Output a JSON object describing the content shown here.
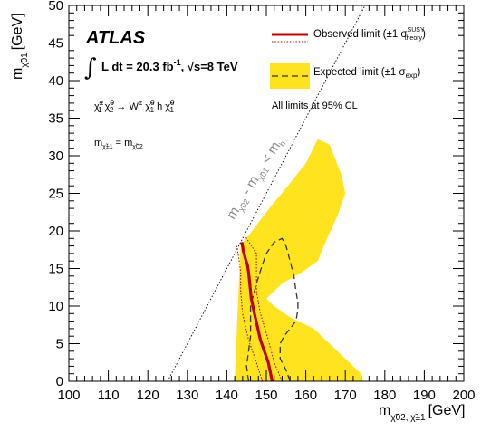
{
  "chart_data": {
    "type": "line",
    "experiment": "ATLAS",
    "luminosity_text": "L dt = 20.3 fb",
    "luminosity_sup": "-1",
    "energy_text": "s=8 TeV",
    "process": "χ̃±1 χ̃02 → W± χ̃01 h χ̃01",
    "mass_assumption": "mχ̃±1 = mχ̃02",
    "kinematic_label": "m - m < m",
    "cl_note": "All limits at 95% CL",
    "xlabel": "m",
    "xlabel_sub": "χ̃02, χ̃±1",
    "xlabel_unit": "[GeV]",
    "ylabel": "m",
    "ylabel_sub": "χ̃01",
    "ylabel_unit": "[GeV]",
    "xlim": [
      100,
      200
    ],
    "ylim": [
      0,
      50
    ],
    "x_ticks": [
      100,
      110,
      120,
      130,
      140,
      150,
      160,
      170,
      180,
      190,
      200
    ],
    "y_ticks": [
      0,
      5,
      10,
      15,
      20,
      25,
      30,
      35,
      40,
      45,
      50
    ],
    "legend": [
      {
        "label": "Observed limit (±1 σ",
        "sup": "SUSY",
        "sub": "theory",
        "close": ")",
        "style": "red-solid"
      },
      {
        "label": "Expected limit (±1 σ",
        "sub": "exp",
        "close": ")",
        "style": "black-dashed-yellow-band"
      }
    ],
    "series": [
      {
        "name": "Expected ±1σ band",
        "x": [
          142.0,
          142.8,
          143.5,
          150.0,
          155.0,
          160.0,
          163.0,
          166.0,
          169.0,
          170.0,
          168.0,
          165.0,
          163.0,
          159.0,
          154.0,
          150.0,
          152.0,
          156.0,
          162.0,
          166.0,
          170.0,
          174.0,
          174.5,
          142.0
        ],
        "y": [
          0.0,
          10.0,
          18.0,
          22.5,
          25.7,
          29.0,
          32.2,
          31.5,
          27.5,
          25.0,
          22.0,
          18.5,
          16.0,
          14.5,
          13.0,
          11.0,
          10.0,
          8.5,
          7.0,
          5.0,
          3.0,
          1.0,
          0.0,
          0.0
        ]
      },
      {
        "name": "Expected limit",
        "x": [
          145.5,
          145.0,
          146.0,
          146.0,
          147.5,
          149.0,
          150.0,
          152.0,
          154.0,
          155.0,
          156.0,
          157.0,
          157.5,
          158.0,
          158.0,
          157.5,
          156.0,
          154.5,
          153.5,
          153.5,
          155.0,
          156.0
        ],
        "y": [
          0.0,
          2.0,
          6.0,
          10.0,
          13.0,
          15.5,
          17.0,
          18.5,
          19.0,
          18.0,
          16.0,
          14.0,
          12.0,
          10.5,
          9.5,
          8.0,
          7.0,
          6.0,
          5.0,
          3.0,
          1.5,
          0.0
        ]
      },
      {
        "name": "Observed limit",
        "x": [
          151.5,
          150.5,
          148.5,
          147.2,
          146.2,
          145.8,
          145.5,
          145.2,
          144.7,
          144.2,
          143.8
        ],
        "y": [
          0.0,
          2.5,
          5.5,
          8.5,
          11.0,
          13.0,
          14.5,
          15.5,
          16.3,
          17.3,
          18.5
        ]
      },
      {
        "name": "Observed +1σ theory",
        "x": [
          154.0,
          152.0,
          150.5,
          148.5,
          147.5,
          147.5,
          147.5,
          147.5,
          145.0,
          144.5
        ],
        "y": [
          0.0,
          2.5,
          5.5,
          9.0,
          12.0,
          14.0,
          16.0,
          17.0,
          19.0,
          19.5
        ]
      },
      {
        "name": "Observed -1σ theory",
        "x": [
          149.0,
          147.5,
          145.5,
          144.0,
          143.5,
          143.5,
          143.0,
          142.5
        ],
        "y": [
          0.0,
          2.5,
          5.5,
          9.0,
          12.0,
          14.5,
          16.5,
          18.0
        ]
      },
      {
        "name": "Kinematic boundary",
        "x": [
          125.0,
          135.0,
          145.0,
          155.0
        ],
        "y": [
          0.0,
          10.0,
          20.0,
          30.0
        ]
      }
    ]
  }
}
